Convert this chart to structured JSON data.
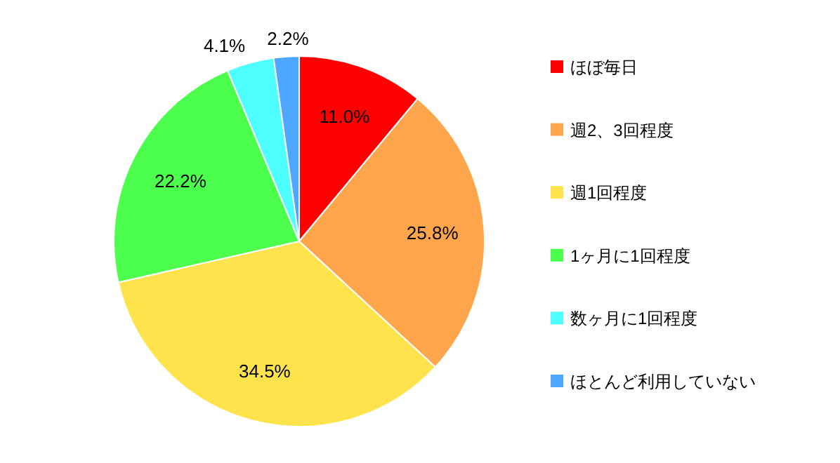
{
  "chart_data": {
    "type": "pie",
    "categories": [
      "ほぼ毎日",
      "週2、3回程度",
      "週1回程度",
      "1ヶ月に1回程度",
      "数ヶ月に1回程度",
      "ほとんど利用していない"
    ],
    "values": [
      11.0,
      25.8,
      34.5,
      22.2,
      4.1,
      2.2
    ],
    "value_labels": [
      "11.0%",
      "25.8%",
      "34.5%",
      "22.2%",
      "4.1%",
      "2.2%"
    ],
    "colors": [
      "#ff0000",
      "#ffa64d",
      "#ffe34d",
      "#4dff4d",
      "#4dffff",
      "#4da6ff"
    ],
    "legend": "right"
  }
}
